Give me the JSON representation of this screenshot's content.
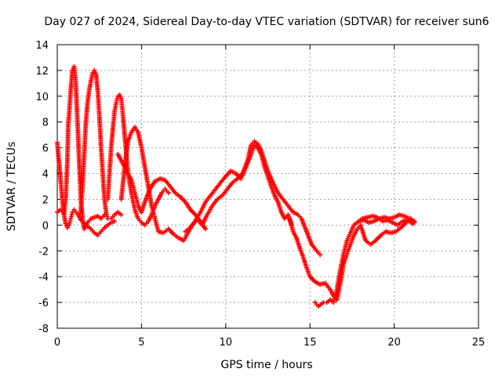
{
  "chart_data": {
    "type": "scatter",
    "title": "Day 027 of 2024, Sidereal Day-to-day VTEC variation (SDTVAR) for receiver sun6",
    "xlabel": "GPS time / hours",
    "ylabel": "SDTVAR / TECUs",
    "xlim": [
      0,
      25
    ],
    "ylim": [
      -8,
      14
    ],
    "xticks": [
      0,
      5,
      10,
      15,
      20,
      25
    ],
    "yticks": [
      -8,
      -6,
      -4,
      -2,
      0,
      2,
      4,
      6,
      8,
      10,
      12,
      14
    ],
    "grid": true,
    "marker": "plus",
    "color": "#ff0000",
    "series": [
      {
        "name": "track-1",
        "points": [
          [
            0.0,
            6.4
          ],
          [
            0.1,
            5.0
          ],
          [
            0.2,
            3.5
          ],
          [
            0.3,
            2.0
          ],
          [
            0.4,
            0.8
          ],
          [
            0.5,
            0.1
          ],
          [
            0.6,
            -0.2
          ],
          [
            0.7,
            0.0
          ],
          [
            0.8,
            0.5
          ],
          [
            0.9,
            1.0
          ],
          [
            1.0,
            1.2
          ],
          [
            1.2,
            0.9
          ],
          [
            1.4,
            0.4
          ],
          [
            1.6,
            0.1
          ],
          [
            1.8,
            -0.1
          ],
          [
            2.0,
            -0.3
          ],
          [
            2.2,
            -0.6
          ],
          [
            2.4,
            -0.8
          ],
          [
            2.6,
            -0.5
          ],
          [
            2.8,
            -0.2
          ],
          [
            3.0,
            0.0
          ],
          [
            3.2,
            0.2
          ],
          [
            3.4,
            0.3
          ]
        ]
      },
      {
        "name": "track-2",
        "points": [
          [
            0.0,
            1.0
          ],
          [
            0.2,
            1.2
          ],
          [
            0.4,
            0.9
          ],
          [
            0.5,
            2.0
          ],
          [
            0.6,
            5.0
          ],
          [
            0.65,
            7.8
          ],
          [
            0.7,
            8.5
          ],
          [
            0.8,
            10.5
          ],
          [
            0.9,
            12.0
          ],
          [
            1.0,
            12.3
          ],
          [
            1.1,
            11.0
          ],
          [
            1.2,
            8.0
          ],
          [
            1.3,
            5.0
          ],
          [
            1.4,
            2.0
          ],
          [
            1.5,
            0.5
          ],
          [
            1.6,
            -0.3
          ],
          [
            1.8,
            0.2
          ],
          [
            2.0,
            0.5
          ],
          [
            2.2,
            0.6
          ],
          [
            2.4,
            0.7
          ],
          [
            2.6,
            0.5
          ],
          [
            2.8,
            0.8
          ]
        ]
      },
      {
        "name": "track-3",
        "points": [
          [
            1.4,
            1.0
          ],
          [
            1.5,
            3.0
          ],
          [
            1.6,
            5.5
          ],
          [
            1.7,
            8.0
          ],
          [
            1.8,
            9.5
          ],
          [
            1.9,
            10.5
          ],
          [
            2.0,
            11.2
          ],
          [
            2.1,
            11.8
          ],
          [
            2.2,
            12.0
          ],
          [
            2.3,
            11.7
          ],
          [
            2.4,
            10.5
          ],
          [
            2.5,
            8.5
          ],
          [
            2.6,
            6.0
          ],
          [
            2.7,
            4.0
          ],
          [
            2.8,
            2.0
          ],
          [
            2.9,
            1.0
          ],
          [
            3.0,
            0.5
          ],
          [
            3.2,
            0.5
          ],
          [
            3.4,
            0.8
          ],
          [
            3.6,
            1.0
          ],
          [
            3.8,
            0.8
          ]
        ]
      },
      {
        "name": "track-4",
        "points": [
          [
            3.0,
            2.0
          ],
          [
            3.1,
            4.0
          ],
          [
            3.2,
            6.0
          ],
          [
            3.3,
            7.5
          ],
          [
            3.4,
            8.8
          ],
          [
            3.5,
            9.5
          ],
          [
            3.6,
            10.0
          ],
          [
            3.7,
            10.1
          ],
          [
            3.8,
            9.8
          ],
          [
            3.9,
            8.5
          ],
          [
            4.0,
            7.0
          ],
          [
            4.1,
            5.5
          ],
          [
            4.2,
            4.0
          ],
          [
            4.4,
            2.5
          ],
          [
            4.6,
            1.2
          ],
          [
            4.8,
            0.5
          ],
          [
            5.0,
            0.2
          ],
          [
            5.2,
            0.0
          ],
          [
            5.4,
            0.3
          ],
          [
            5.6,
            0.8
          ],
          [
            5.8,
            1.5
          ],
          [
            6.0,
            2.0
          ],
          [
            6.2,
            2.5
          ],
          [
            6.4,
            2.8
          ],
          [
            6.6,
            2.5
          ]
        ]
      },
      {
        "name": "track-5",
        "points": [
          [
            3.8,
            2.0
          ],
          [
            4.0,
            4.5
          ],
          [
            4.2,
            6.5
          ],
          [
            4.4,
            7.2
          ],
          [
            4.6,
            7.6
          ],
          [
            4.8,
            7.2
          ],
          [
            5.0,
            6.0
          ],
          [
            5.2,
            4.5
          ],
          [
            5.4,
            3.0
          ],
          [
            5.6,
            1.5
          ],
          [
            5.8,
            0.5
          ],
          [
            6.0,
            -0.5
          ],
          [
            6.3,
            -0.6
          ],
          [
            6.6,
            -0.3
          ],
          [
            6.9,
            -0.7
          ],
          [
            7.2,
            -1.0
          ],
          [
            7.5,
            -1.2
          ],
          [
            7.8,
            -0.5
          ],
          [
            8.0,
            0.0
          ]
        ]
      },
      {
        "name": "track-6",
        "points": [
          [
            3.6,
            5.5
          ],
          [
            3.8,
            5.0
          ],
          [
            4.0,
            4.5
          ],
          [
            4.2,
            4.0
          ],
          [
            4.4,
            3.5
          ],
          [
            4.6,
            2.5
          ],
          [
            4.8,
            1.5
          ],
          [
            5.0,
            1.0
          ],
          [
            5.2,
            1.8
          ],
          [
            5.5,
            2.8
          ],
          [
            5.8,
            3.4
          ],
          [
            6.1,
            3.6
          ],
          [
            6.4,
            3.5
          ],
          [
            6.7,
            3.0
          ],
          [
            7.0,
            2.5
          ],
          [
            7.3,
            2.2
          ],
          [
            7.6,
            1.8
          ],
          [
            7.9,
            1.2
          ],
          [
            8.2,
            0.8
          ],
          [
            8.5,
            0.3
          ],
          [
            8.8,
            -0.3
          ]
        ]
      },
      {
        "name": "track-7",
        "points": [
          [
            7.6,
            -0.5
          ],
          [
            7.9,
            -0.2
          ],
          [
            8.2,
            0.3
          ],
          [
            8.5,
            1.0
          ],
          [
            8.8,
            1.8
          ],
          [
            9.1,
            2.3
          ],
          [
            9.4,
            2.8
          ],
          [
            9.7,
            3.3
          ],
          [
            10.0,
            3.8
          ],
          [
            10.3,
            4.2
          ],
          [
            10.6,
            4.0
          ],
          [
            10.9,
            3.6
          ],
          [
            11.2,
            4.5
          ],
          [
            11.5,
            5.5
          ],
          [
            11.7,
            6.2
          ],
          [
            11.9,
            6.0
          ],
          [
            12.1,
            5.5
          ],
          [
            12.3,
            4.5
          ],
          [
            12.5,
            3.8
          ],
          [
            12.7,
            3.0
          ],
          [
            12.9,
            2.3
          ],
          [
            13.1,
            1.8
          ],
          [
            13.3,
            1.0
          ],
          [
            13.5,
            0.5
          ],
          [
            13.7,
            0.8
          ],
          [
            13.9,
            0.0
          ]
        ]
      },
      {
        "name": "track-8",
        "points": [
          [
            8.0,
            0.0
          ],
          [
            8.3,
            0.5
          ],
          [
            8.6,
            0.0
          ],
          [
            8.9,
            0.8
          ],
          [
            9.2,
            1.5
          ],
          [
            9.5,
            2.0
          ],
          [
            9.8,
            2.3
          ],
          [
            10.1,
            2.8
          ],
          [
            10.4,
            3.3
          ],
          [
            10.7,
            3.6
          ],
          [
            11.0,
            4.0
          ],
          [
            11.3,
            5.0
          ],
          [
            11.5,
            6.2
          ],
          [
            11.7,
            6.5
          ],
          [
            11.9,
            6.3
          ],
          [
            12.1,
            5.8
          ],
          [
            12.3,
            5.0
          ],
          [
            12.5,
            4.2
          ],
          [
            12.8,
            3.3
          ],
          [
            13.1,
            2.5
          ],
          [
            13.4,
            2.0
          ],
          [
            13.7,
            1.5
          ],
          [
            14.0,
            1.0
          ],
          [
            14.3,
            0.8
          ],
          [
            14.5,
            0.5
          ],
          [
            14.8,
            -0.5
          ],
          [
            15.1,
            -1.5
          ],
          [
            15.4,
            -2.0
          ],
          [
            15.6,
            -2.3
          ]
        ]
      },
      {
        "name": "track-9",
        "points": [
          [
            13.8,
            0.5
          ],
          [
            14.0,
            -0.5
          ],
          [
            14.2,
            -1.0
          ],
          [
            14.4,
            -1.8
          ],
          [
            14.6,
            -2.5
          ],
          [
            14.8,
            -3.3
          ],
          [
            15.0,
            -4.0
          ],
          [
            15.3,
            -4.4
          ],
          [
            15.6,
            -4.6
          ],
          [
            15.9,
            -4.5
          ],
          [
            16.2,
            -5.0
          ],
          [
            16.4,
            -5.5
          ],
          [
            16.6,
            -5.8
          ],
          [
            16.8,
            -4.5
          ],
          [
            17.0,
            -3.0
          ],
          [
            17.2,
            -2.2
          ],
          [
            17.4,
            -1.5
          ],
          [
            17.6,
            -0.8
          ],
          [
            17.8,
            -0.3
          ],
          [
            18.0,
            0.0
          ],
          [
            18.3,
            -1.2
          ],
          [
            18.6,
            -1.5
          ],
          [
            18.9,
            -1.2
          ],
          [
            19.2,
            -0.8
          ],
          [
            19.5,
            -0.5
          ],
          [
            19.8,
            -0.6
          ],
          [
            20.1,
            -0.5
          ],
          [
            20.4,
            -0.2
          ],
          [
            20.7,
            0.2
          ],
          [
            21.0,
            0.5
          ],
          [
            21.2,
            0.2
          ]
        ]
      },
      {
        "name": "track-10",
        "points": [
          [
            15.3,
            -6.0
          ],
          [
            15.5,
            -6.3
          ],
          [
            15.8,
            -6.0
          ],
          [
            16.0,
            -6.0
          ],
          [
            16.2,
            -5.8
          ],
          [
            16.4,
            -6.0
          ],
          [
            16.6,
            -5.0
          ],
          [
            16.8,
            -3.5
          ],
          [
            17.0,
            -2.2
          ],
          [
            17.2,
            -1.2
          ],
          [
            17.4,
            -0.6
          ],
          [
            17.6,
            0.0
          ],
          [
            17.9,
            0.3
          ],
          [
            18.2,
            0.4
          ],
          [
            18.5,
            0.2
          ],
          [
            18.8,
            0.3
          ],
          [
            19.1,
            0.5
          ],
          [
            19.4,
            0.6
          ],
          [
            19.7,
            0.5
          ],
          [
            20.0,
            0.6
          ],
          [
            20.3,
            0.8
          ],
          [
            20.6,
            0.7
          ],
          [
            20.9,
            0.5
          ],
          [
            21.2,
            0.3
          ]
        ]
      },
      {
        "name": "track-11",
        "points": [
          [
            17.8,
            0.2
          ],
          [
            18.1,
            0.5
          ],
          [
            18.4,
            0.6
          ],
          [
            18.7,
            0.7
          ],
          [
            19.0,
            0.6
          ],
          [
            19.3,
            0.3
          ],
          [
            19.6,
            0.4
          ],
          [
            19.9,
            0.2
          ],
          [
            20.2,
            0.0
          ],
          [
            20.5,
            0.3
          ],
          [
            20.8,
            0.4
          ],
          [
            21.1,
            0.1
          ]
        ]
      }
    ]
  }
}
